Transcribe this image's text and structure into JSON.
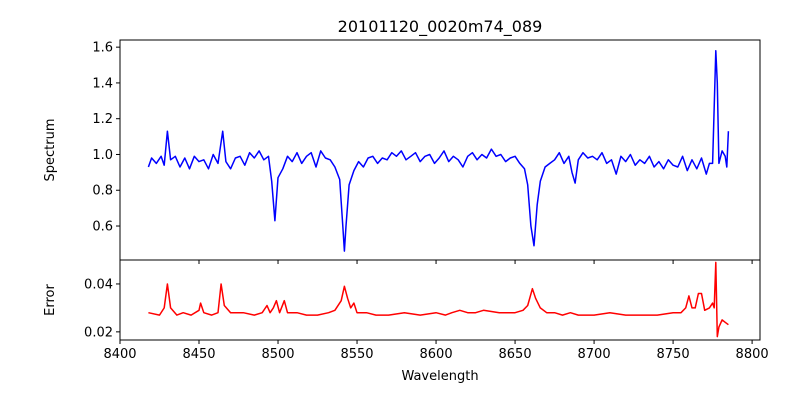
{
  "chart_data": [
    {
      "type": "line",
      "title": "20101120_0020m74_089",
      "xlabel": "",
      "ylabel": "Spectrum",
      "xlim": [
        8400,
        8805
      ],
      "ylim": [
        0.41,
        1.64
      ],
      "xticks": [
        8400,
        8450,
        8500,
        8550,
        8600,
        8650,
        8700,
        8750,
        8800
      ],
      "yticks": [
        0.6,
        0.8,
        1.0,
        1.2,
        1.4,
        1.6
      ],
      "ytick_labels": [
        "0.6",
        "0.8",
        "1.0",
        "1.2",
        "1.4",
        "1.6"
      ],
      "series": [
        {
          "name": "Spectrum",
          "color": "#0000ff",
          "points": [
            [
              8418,
              0.93
            ],
            [
              8420,
              0.98
            ],
            [
              8423,
              0.95
            ],
            [
              8426,
              0.99
            ],
            [
              8428,
              0.94
            ],
            [
              8430,
              1.13
            ],
            [
              8432,
              0.97
            ],
            [
              8435,
              0.99
            ],
            [
              8438,
              0.93
            ],
            [
              8441,
              0.98
            ],
            [
              8444,
              0.92
            ],
            [
              8447,
              0.99
            ],
            [
              8450,
              0.96
            ],
            [
              8453,
              0.97
            ],
            [
              8456,
              0.92
            ],
            [
              8459,
              1.0
            ],
            [
              8462,
              0.95
            ],
            [
              8465,
              1.13
            ],
            [
              8467,
              0.96
            ],
            [
              8470,
              0.92
            ],
            [
              8473,
              0.98
            ],
            [
              8476,
              0.99
            ],
            [
              8479,
              0.94
            ],
            [
              8482,
              1.01
            ],
            [
              8485,
              0.98
            ],
            [
              8488,
              1.02
            ],
            [
              8491,
              0.97
            ],
            [
              8494,
              0.99
            ],
            [
              8496,
              0.85
            ],
            [
              8498,
              0.63
            ],
            [
              8500,
              0.87
            ],
            [
              8503,
              0.92
            ],
            [
              8506,
              0.99
            ],
            [
              8509,
              0.96
            ],
            [
              8512,
              1.01
            ],
            [
              8515,
              0.95
            ],
            [
              8518,
              0.99
            ],
            [
              8521,
              1.01
            ],
            [
              8524,
              0.93
            ],
            [
              8527,
              1.02
            ],
            [
              8530,
              0.98
            ],
            [
              8533,
              0.97
            ],
            [
              8536,
              0.93
            ],
            [
              8539,
              0.86
            ],
            [
              8541,
              0.6
            ],
            [
              8542,
              0.46
            ],
            [
              8543,
              0.6
            ],
            [
              8545,
              0.83
            ],
            [
              8548,
              0.91
            ],
            [
              8551,
              0.96
            ],
            [
              8554,
              0.93
            ],
            [
              8557,
              0.98
            ],
            [
              8560,
              0.99
            ],
            [
              8563,
              0.95
            ],
            [
              8566,
              0.98
            ],
            [
              8569,
              0.97
            ],
            [
              8572,
              1.01
            ],
            [
              8575,
              0.99
            ],
            [
              8578,
              1.02
            ],
            [
              8581,
              0.97
            ],
            [
              8584,
              0.99
            ],
            [
              8587,
              1.01
            ],
            [
              8590,
              0.96
            ],
            [
              8593,
              0.99
            ],
            [
              8596,
              1.0
            ],
            [
              8599,
              0.95
            ],
            [
              8602,
              0.98
            ],
            [
              8605,
              1.02
            ],
            [
              8608,
              0.96
            ],
            [
              8611,
              0.99
            ],
            [
              8614,
              0.97
            ],
            [
              8617,
              0.93
            ],
            [
              8620,
              0.99
            ],
            [
              8623,
              1.01
            ],
            [
              8626,
              0.97
            ],
            [
              8629,
              1.0
            ],
            [
              8632,
              0.98
            ],
            [
              8635,
              1.03
            ],
            [
              8638,
              0.99
            ],
            [
              8641,
              1.0
            ],
            [
              8644,
              0.96
            ],
            [
              8647,
              0.98
            ],
            [
              8650,
              0.99
            ],
            [
              8653,
              0.95
            ],
            [
              8656,
              0.92
            ],
            [
              8658,
              0.83
            ],
            [
              8660,
              0.6
            ],
            [
              8662,
              0.49
            ],
            [
              8664,
              0.72
            ],
            [
              8666,
              0.85
            ],
            [
              8669,
              0.93
            ],
            [
              8672,
              0.95
            ],
            [
              8675,
              0.97
            ],
            [
              8678,
              1.01
            ],
            [
              8681,
              0.95
            ],
            [
              8684,
              0.99
            ],
            [
              8686,
              0.9
            ],
            [
              8688,
              0.84
            ],
            [
              8690,
              0.97
            ],
            [
              8693,
              1.01
            ],
            [
              8696,
              0.98
            ],
            [
              8699,
              0.99
            ],
            [
              8702,
              0.97
            ],
            [
              8705,
              1.01
            ],
            [
              8708,
              0.95
            ],
            [
              8711,
              0.97
            ],
            [
              8714,
              0.89
            ],
            [
              8717,
              0.99
            ],
            [
              8720,
              0.96
            ],
            [
              8723,
              1.0
            ],
            [
              8726,
              0.94
            ],
            [
              8729,
              0.97
            ],
            [
              8732,
              0.95
            ],
            [
              8735,
              0.99
            ],
            [
              8738,
              0.93
            ],
            [
              8741,
              0.96
            ],
            [
              8744,
              0.92
            ],
            [
              8747,
              0.97
            ],
            [
              8750,
              0.94
            ],
            [
              8753,
              0.93
            ],
            [
              8756,
              0.99
            ],
            [
              8759,
              0.91
            ],
            [
              8762,
              0.97
            ],
            [
              8765,
              0.92
            ],
            [
              8768,
              0.98
            ],
            [
              8771,
              0.89
            ],
            [
              8773,
              0.95
            ],
            [
              8775,
              0.95
            ],
            [
              8777,
              1.58
            ],
            [
              8778,
              1.4
            ],
            [
              8779,
              0.95
            ],
            [
              8781,
              1.02
            ],
            [
              8783,
              0.99
            ],
            [
              8784,
              0.93
            ],
            [
              8785,
              1.13
            ]
          ]
        }
      ]
    },
    {
      "type": "line",
      "title": "",
      "xlabel": "Wavelength",
      "ylabel": "Error",
      "xlim": [
        8400,
        8805
      ],
      "ylim": [
        0.0166,
        0.05
      ],
      "xticks": [
        8400,
        8450,
        8500,
        8550,
        8600,
        8650,
        8700,
        8750,
        8800
      ],
      "xtick_labels": [
        "8400",
        "8450",
        "8500",
        "8550",
        "8600",
        "8650",
        "8700",
        "8750",
        "8800"
      ],
      "yticks": [
        0.02,
        0.04
      ],
      "ytick_labels": [
        "0.02",
        "0.04"
      ],
      "series": [
        {
          "name": "Error",
          "color": "#ff0000",
          "points": [
            [
              8418,
              0.028
            ],
            [
              8425,
              0.027
            ],
            [
              8428,
              0.03
            ],
            [
              8430,
              0.04
            ],
            [
              8432,
              0.03
            ],
            [
              8436,
              0.027
            ],
            [
              8440,
              0.028
            ],
            [
              8445,
              0.027
            ],
            [
              8450,
              0.029
            ],
            [
              8451,
              0.032
            ],
            [
              8453,
              0.028
            ],
            [
              8458,
              0.027
            ],
            [
              8462,
              0.028
            ],
            [
              8464,
              0.04
            ],
            [
              8466,
              0.031
            ],
            [
              8470,
              0.028
            ],
            [
              8478,
              0.028
            ],
            [
              8485,
              0.027
            ],
            [
              8490,
              0.028
            ],
            [
              8493,
              0.031
            ],
            [
              8495,
              0.028
            ],
            [
              8497,
              0.03
            ],
            [
              8499,
              0.033
            ],
            [
              8501,
              0.028
            ],
            [
              8504,
              0.033
            ],
            [
              8506,
              0.028
            ],
            [
              8512,
              0.028
            ],
            [
              8518,
              0.027
            ],
            [
              8525,
              0.027
            ],
            [
              8532,
              0.028
            ],
            [
              8536,
              0.029
            ],
            [
              8540,
              0.033
            ],
            [
              8542,
              0.039
            ],
            [
              8544,
              0.034
            ],
            [
              8546,
              0.03
            ],
            [
              8548,
              0.032
            ],
            [
              8550,
              0.028
            ],
            [
              8556,
              0.028
            ],
            [
              8562,
              0.027
            ],
            [
              8570,
              0.027
            ],
            [
              8580,
              0.028
            ],
            [
              8590,
              0.027
            ],
            [
              8600,
              0.028
            ],
            [
              8606,
              0.027
            ],
            [
              8610,
              0.028
            ],
            [
              8615,
              0.029
            ],
            [
              8620,
              0.028
            ],
            [
              8625,
              0.028
            ],
            [
              8630,
              0.029
            ],
            [
              8640,
              0.028
            ],
            [
              8650,
              0.028
            ],
            [
              8655,
              0.029
            ],
            [
              8658,
              0.031
            ],
            [
              8661,
              0.038
            ],
            [
              8663,
              0.034
            ],
            [
              8666,
              0.03
            ],
            [
              8670,
              0.028
            ],
            [
              8675,
              0.028
            ],
            [
              8680,
              0.027
            ],
            [
              8685,
              0.028
            ],
            [
              8690,
              0.027
            ],
            [
              8700,
              0.027
            ],
            [
              8710,
              0.028
            ],
            [
              8720,
              0.027
            ],
            [
              8730,
              0.027
            ],
            [
              8740,
              0.027
            ],
            [
              8750,
              0.028
            ],
            [
              8755,
              0.028
            ],
            [
              8758,
              0.03
            ],
            [
              8760,
              0.035
            ],
            [
              8762,
              0.03
            ],
            [
              8764,
              0.03
            ],
            [
              8766,
              0.036
            ],
            [
              8768,
              0.036
            ],
            [
              8770,
              0.029
            ],
            [
              8773,
              0.03
            ],
            [
              8775,
              0.032
            ],
            [
              8776,
              0.03
            ],
            [
              8777,
              0.049
            ],
            [
              8778,
              0.018
            ],
            [
              8779,
              0.022
            ],
            [
              8781,
              0.025
            ],
            [
              8783,
              0.024
            ],
            [
              8785,
              0.023
            ]
          ]
        }
      ]
    }
  ]
}
